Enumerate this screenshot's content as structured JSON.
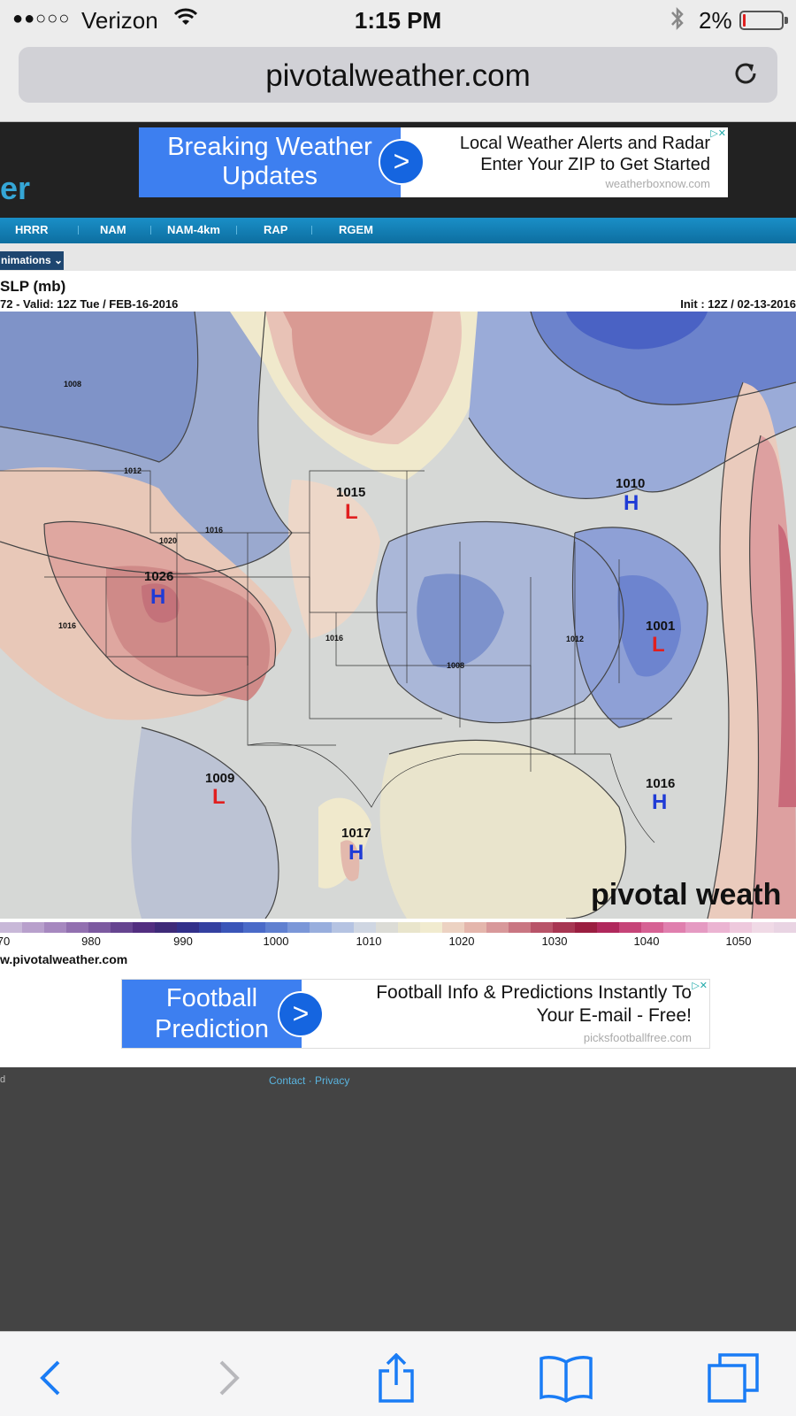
{
  "status": {
    "dots": "●●○○○",
    "carrier": "Verizon",
    "time": "1:15 PM",
    "battery": "2%"
  },
  "browser": {
    "url": "pivotalweather.com"
  },
  "header": {
    "logo_fragment": "er"
  },
  "ad_top": {
    "headline": "Breaking Weather Updates",
    "line1": "Local Weather Alerts and Radar",
    "line2": "Enter Your ZIP to Get Started",
    "source": "weatherboxnow.com"
  },
  "nav": {
    "items": [
      "HRRR",
      "NAM",
      "NAM-4km",
      "RAP",
      "RGEM"
    ]
  },
  "subbar": {
    "animations": "nimations ⌄"
  },
  "map": {
    "title": "SLP (mb)",
    "valid": "72 - Valid: 12Z Tue / FEB-16-2016",
    "init": "Init : 12Z / 02-13-2016",
    "watermark": "pivotal weath",
    "centers": [
      {
        "type": "H",
        "value": "1026"
      },
      {
        "type": "L",
        "value": "1015"
      },
      {
        "type": "H",
        "value": "1010"
      },
      {
        "type": "L",
        "value": "1001"
      },
      {
        "type": "L",
        "value": "1009"
      },
      {
        "type": "H",
        "value": "1017"
      },
      {
        "type": "H",
        "value": "1016"
      }
    ],
    "isobar_labels": [
      "1008",
      "1012",
      "1020",
      "1016",
      "1016",
      "1016",
      "1008",
      "1012"
    ],
    "colorbar_ticks": [
      "70",
      "980",
      "990",
      "1000",
      "1010",
      "1020",
      "1030",
      "1040",
      "1050"
    ],
    "site_url": "w.pivotalweather.com"
  },
  "ad_bottom": {
    "headline": "Football Prediction",
    "line1": "Football Info & Predictions Instantly To",
    "line2": "Your E-mail - Free!",
    "source": "picksfootballfree.com"
  },
  "footer": {
    "left_fragment": "d",
    "links": "Contact · Privacy"
  }
}
